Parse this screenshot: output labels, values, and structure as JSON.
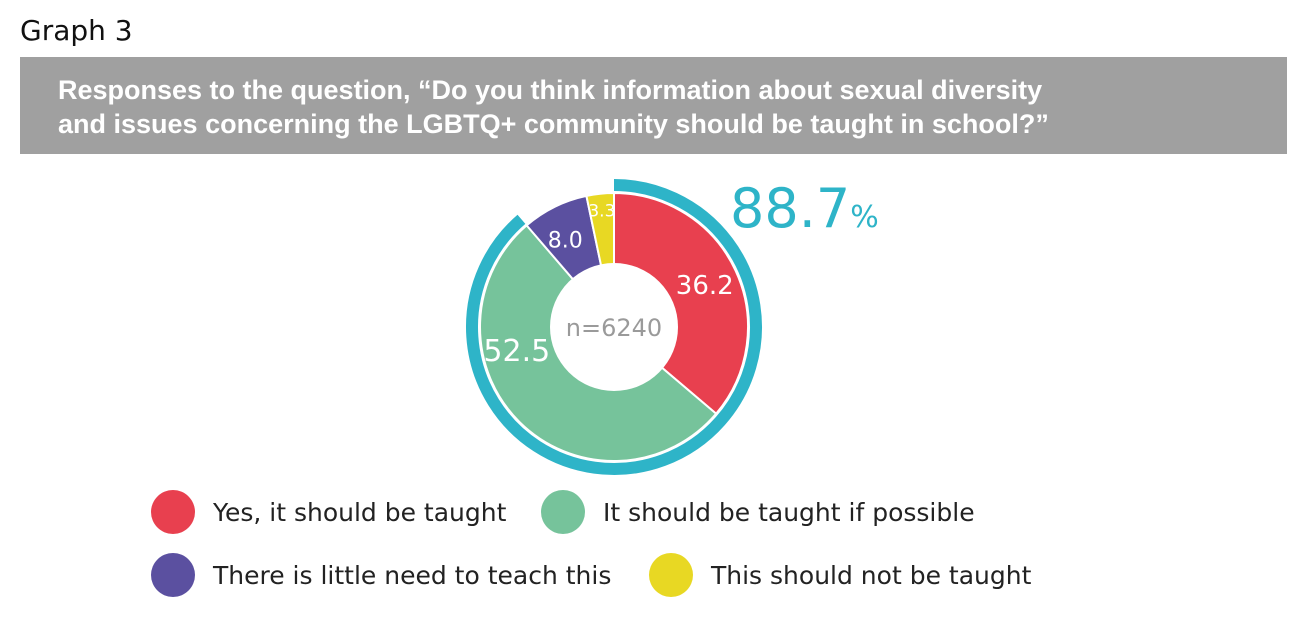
{
  "graph_label": "Graph 3",
  "title": {
    "line1": "Responses to the question, “Do you think information about sexual diversity",
    "line2": "and issues concerning the LGBTQ+ community should be taught in school?”"
  },
  "chart_data": {
    "type": "pie",
    "style": "donut",
    "sample_label": "n=6240",
    "slices": [
      {
        "label": "Yes, it should be taught",
        "value": 36.2,
        "value_label": "36.2",
        "color": "#e8404f"
      },
      {
        "label": "It should be taught if possible",
        "value": 52.5,
        "value_label": "52.5",
        "color": "#76c39b"
      },
      {
        "label": "There is little need to teach this",
        "value": 8.0,
        "value_label": "8.0",
        "color": "#5b50a0"
      },
      {
        "label": "This should not be taught",
        "value": 3.3,
        "value_label": "3.3",
        "color": "#e8d823"
      }
    ],
    "highlight": {
      "value": "88.7",
      "unit": "%",
      "covers": [
        "Yes, it should be taught",
        "It should be taught if possible"
      ],
      "color": "#2eb4c8"
    },
    "legend_position": "bottom"
  }
}
